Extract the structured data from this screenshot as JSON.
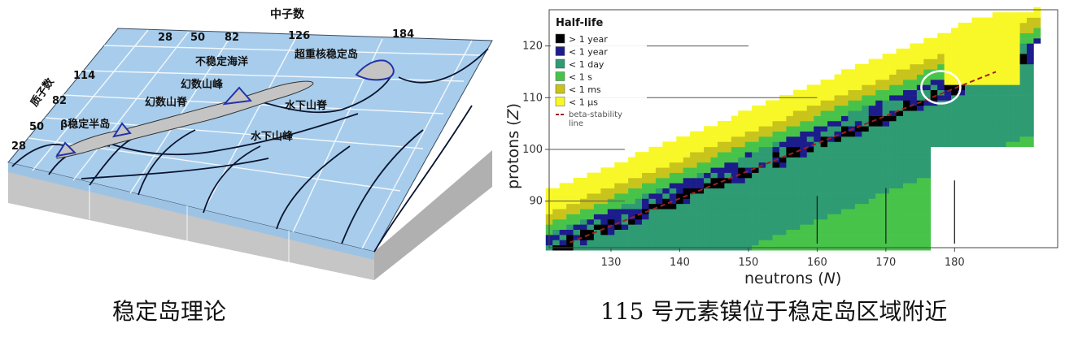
{
  "left_diagram": {
    "neutron_axis_title": "中子数",
    "neutron_ticks": [
      "28",
      "50",
      "82",
      "126",
      "184"
    ],
    "proton_axis_title": "质子数",
    "proton_ticks": [
      "114",
      "82",
      "50",
      "28"
    ],
    "labels": {
      "sea": "不稳定海洋",
      "superheavy_island": "超重核稳定岛",
      "magic_peak": "幻数山峰",
      "magic_ridge": "幻数山脊",
      "beta_peninsula": "β稳定半岛",
      "underwater_ridge": "水下山脊",
      "underwater_peak": "水下山峰"
    },
    "colors": {
      "sea": "#a8cdec",
      "land": "#c4c4c4",
      "ground": "#c8c8c8",
      "coast": "#2233aa"
    }
  },
  "chart_data": {
    "type": "heatmap",
    "legend_title": "Half-life",
    "legend": [
      {
        "label": "> 1 year",
        "color": "#000000"
      },
      {
        "label": "< 1 year",
        "color": "#1c1c8c"
      },
      {
        "label": "< 1 day",
        "color": "#2e9b72"
      },
      {
        "label": "< 1 s",
        "color": "#48c34a"
      },
      {
        "label": "< 1 ms",
        "color": "#c8c41c"
      },
      {
        "label": "< 1 μs",
        "color": "#f8f828"
      }
    ],
    "beta_line_label": "beta-stability line",
    "xlabel": "neutrons",
    "xlabel_symbol": "N",
    "ylabel": "protons",
    "ylabel_symbol": "Z",
    "xlim": [
      121,
      195
    ],
    "ylim": [
      81,
      127
    ],
    "xticks": [
      130,
      140,
      150,
      160,
      170,
      180
    ],
    "yticks": [
      90,
      100,
      110,
      120
    ],
    "beta_stability_line": {
      "x": [
        124,
        186
      ],
      "y": [
        82,
        115
      ]
    },
    "highlight_circle": {
      "x": 178,
      "y": 112
    }
  },
  "captions": {
    "left": "稳定岛理论",
    "right": "115 号元素镆位于稳定岛区域附近"
  }
}
